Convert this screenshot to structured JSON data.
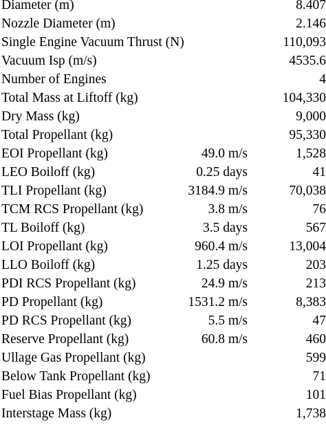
{
  "rows": [
    {
      "label": "Diameter (m)",
      "mid": "",
      "value": "8.407"
    },
    {
      "label": "Nozzle Diameter (m)",
      "mid": "",
      "value": "2.146"
    },
    {
      "label": "Single Engine Vacuum Thrust (N)",
      "mid": "",
      "value": "110,093"
    },
    {
      "label": "Vacuum Isp (m/s)",
      "mid": "",
      "value": "4535.6"
    },
    {
      "label": "Number of Engines",
      "mid": "",
      "value": "4"
    },
    {
      "label": "Total Mass at Liftoff (kg)",
      "mid": "",
      "value": "104,330"
    },
    {
      "label": "Dry Mass (kg)",
      "mid": "",
      "value": "9,000"
    },
    {
      "label": "Total Propellant (kg)",
      "mid": "",
      "value": "95,330"
    },
    {
      "label": "EOI Propellant (kg)",
      "mid": "49.0 m/s",
      "value": "1,528"
    },
    {
      "label": "LEO Boiloff (kg)",
      "mid": "0.25 days",
      "value": "41"
    },
    {
      "label": "TLI Propellant (kg)",
      "mid": "3184.9 m/s",
      "value": "70,038"
    },
    {
      "label": "TCM RCS Propellant (kg)",
      "mid": "3.8 m/s",
      "value": "76"
    },
    {
      "label": "TL Boiloff (kg)",
      "mid": "3.5 days",
      "value": "567"
    },
    {
      "label": "LOI Propellant (kg)",
      "mid": "960.4 m/s",
      "value": "13,004"
    },
    {
      "label": "LLO Boiloff (kg)",
      "mid": "1.25 days",
      "value": "203"
    },
    {
      "label": "PDI RCS Propellant (kg)",
      "mid": "24.9 m/s",
      "value": "213"
    },
    {
      "label": "PD Propellant (kg)",
      "mid": "1531.2 m/s",
      "value": "8,383"
    },
    {
      "label": "PD RCS Propellant (kg)",
      "mid": "5.5 m/s",
      "value": "47"
    },
    {
      "label": "Reserve Propellant (kg)",
      "mid": "60.8 m/s",
      "value": "460"
    },
    {
      "label": "Ullage Gas Propellant (kg)",
      "mid": "",
      "value": "599"
    },
    {
      "label": "Below Tank Propellant (kg)",
      "mid": "",
      "value": "71"
    },
    {
      "label": "Fuel Bias Propellant (kg)",
      "mid": "",
      "value": "101"
    },
    {
      "label": "Interstage Mass (kg)",
      "mid": "",
      "value": "1,738"
    }
  ]
}
